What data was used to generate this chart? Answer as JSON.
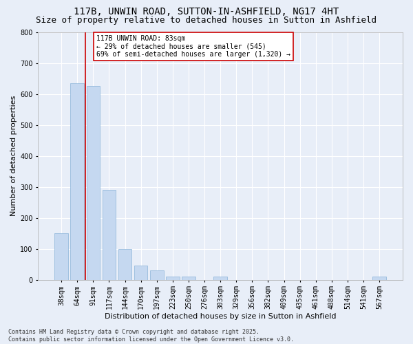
{
  "title1": "117B, UNWIN ROAD, SUTTON-IN-ASHFIELD, NG17 4HT",
  "title2": "Size of property relative to detached houses in Sutton in Ashfield",
  "xlabel": "Distribution of detached houses by size in Sutton in Ashfield",
  "ylabel": "Number of detached properties",
  "categories": [
    "38sqm",
    "64sqm",
    "91sqm",
    "117sqm",
    "144sqm",
    "170sqm",
    "197sqm",
    "223sqm",
    "250sqm",
    "276sqm",
    "303sqm",
    "329sqm",
    "356sqm",
    "382sqm",
    "409sqm",
    "435sqm",
    "461sqm",
    "488sqm",
    "514sqm",
    "541sqm",
    "567sqm"
  ],
  "values": [
    150,
    635,
    625,
    290,
    100,
    45,
    30,
    10,
    10,
    0,
    10,
    0,
    0,
    0,
    0,
    0,
    0,
    0,
    0,
    0,
    10
  ],
  "bar_color": "#c5d8f0",
  "bar_edge_color": "#8ab4d9",
  "vline_color": "#cc0000",
  "annotation_text": "117B UNWIN ROAD: 83sqm\n← 29% of detached houses are smaller (545)\n69% of semi-detached houses are larger (1,320) →",
  "annotation_box_color": "white",
  "annotation_box_edge": "#cc0000",
  "ylim": [
    0,
    800
  ],
  "yticks": [
    0,
    100,
    200,
    300,
    400,
    500,
    600,
    700,
    800
  ],
  "background_color": "#e8eef8",
  "grid_color": "white",
  "footer": "Contains HM Land Registry data © Crown copyright and database right 2025.\nContains public sector information licensed under the Open Government Licence v3.0.",
  "title_fontsize": 10,
  "subtitle_fontsize": 9,
  "tick_fontsize": 7,
  "ylabel_fontsize": 8,
  "xlabel_fontsize": 8,
  "annotation_fontsize": 7,
  "footer_fontsize": 6
}
